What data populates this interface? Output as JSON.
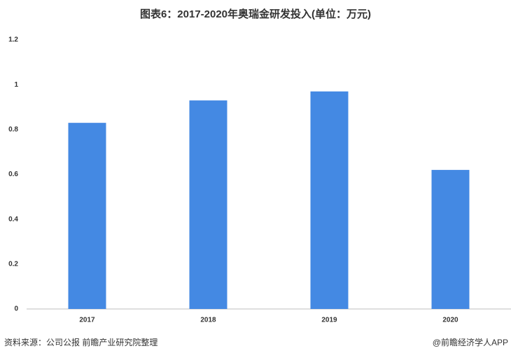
{
  "chart_data": {
    "type": "bar",
    "title": "图表6：2017-2020年奥瑞金研发投入(单位：万元)",
    "categories": [
      "2017",
      "2018",
      "2019",
      "2020"
    ],
    "values": [
      0.83,
      0.93,
      0.97,
      0.62
    ],
    "color": "#4489e3",
    "ylim": [
      0,
      1.2
    ],
    "yticks": [
      0,
      0.2,
      0.4,
      0.6,
      0.8,
      1,
      1.2
    ],
    "grid": false,
    "source": "资料来源：公司公报 前瞻产业研究院整理",
    "credit": "@前瞻经济学人APP"
  }
}
